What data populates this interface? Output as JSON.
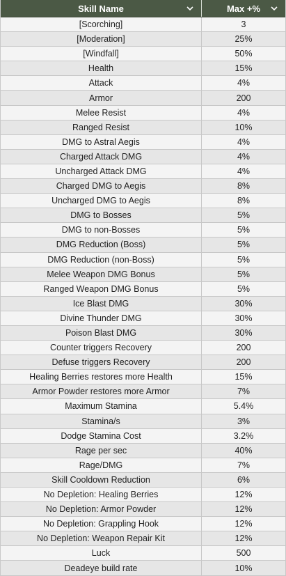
{
  "table": {
    "headers": {
      "skill_name": "Skill Name",
      "max": "Max +%"
    },
    "sort_icon": "chevron-down-icon",
    "header_bg": "#4b5945",
    "rows": [
      {
        "name": "[Scorching]",
        "max": "3"
      },
      {
        "name": "[Moderation]",
        "max": "25%"
      },
      {
        "name": "[Windfall]",
        "max": "50%"
      },
      {
        "name": "Health",
        "max": "15%"
      },
      {
        "name": "Attack",
        "max": "4%"
      },
      {
        "name": "Armor",
        "max": "200"
      },
      {
        "name": "Melee Resist",
        "max": "4%"
      },
      {
        "name": "Ranged Resist",
        "max": "10%"
      },
      {
        "name": "DMG to Astral Aegis",
        "max": "4%"
      },
      {
        "name": "Charged Attack DMG",
        "max": "4%"
      },
      {
        "name": "Uncharged Attack DMG",
        "max": "4%"
      },
      {
        "name": "Charged DMG to Aegis",
        "max": "8%"
      },
      {
        "name": "Uncharged DMG to Aegis",
        "max": "8%"
      },
      {
        "name": "DMG to Bosses",
        "max": "5%"
      },
      {
        "name": "DMG to non-Bosses",
        "max": "5%"
      },
      {
        "name": "DMG Reduction (Boss)",
        "max": "5%"
      },
      {
        "name": "DMG Reduction (non-Boss)",
        "max": "5%"
      },
      {
        "name": "Melee Weapon DMG Bonus",
        "max": "5%"
      },
      {
        "name": "Ranged Weapon DMG Bonus",
        "max": "5%"
      },
      {
        "name": "Ice Blast DMG",
        "max": "30%"
      },
      {
        "name": "Divine Thunder DMG",
        "max": "30%"
      },
      {
        "name": "Poison Blast DMG",
        "max": "30%"
      },
      {
        "name": "Counter triggers Recovery",
        "max": "200"
      },
      {
        "name": "Defuse triggers Recovery",
        "max": "200"
      },
      {
        "name": "Healing Berries restores more Health",
        "max": "15%"
      },
      {
        "name": "Armor Powder restores more Armor",
        "max": "7%"
      },
      {
        "name": "Maximum Stamina",
        "max": "5.4%"
      },
      {
        "name": "Stamina/s",
        "max": "3%"
      },
      {
        "name": "Dodge Stamina Cost",
        "max": "3.2%"
      },
      {
        "name": "Rage per sec",
        "max": "40%"
      },
      {
        "name": "Rage/DMG",
        "max": "7%"
      },
      {
        "name": "Skill Cooldown Reduction",
        "max": "6%"
      },
      {
        "name": "No Depletion: Healing Berries",
        "max": "12%"
      },
      {
        "name": "No Depletion: Armor Powder",
        "max": "12%"
      },
      {
        "name": "No Depletion: Grappling Hook",
        "max": "12%"
      },
      {
        "name": "No Depletion: Weapon Repair Kit",
        "max": "12%"
      },
      {
        "name": "Luck",
        "max": "500"
      },
      {
        "name": "Deadeye build rate",
        "max": "10%"
      }
    ]
  }
}
